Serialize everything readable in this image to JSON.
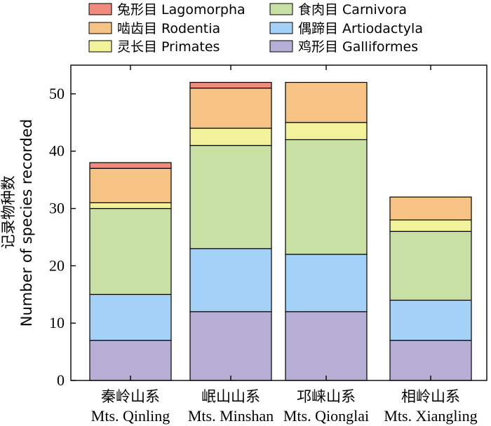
{
  "chart_data": {
    "type": "bar",
    "stacked": true,
    "categories_cn": [
      "秦岭山系",
      "岷山山系",
      "邛崃山系",
      "相岭山系"
    ],
    "categories_en": [
      "Mts. Qinling",
      "Mts. Minshan",
      "Mts. Qionglai",
      "Mts. Xiangling"
    ],
    "ylabel_cn": "记录物种数",
    "ylabel_en": "Number of species recorded",
    "ylim": [
      0,
      55
    ],
    "yticks": [
      0,
      10,
      20,
      30,
      40,
      50
    ],
    "grid": false,
    "legend_position": "top",
    "series": [
      {
        "name": "鸡形目 Galliformes",
        "color": "#b7aed6",
        "values": [
          7,
          12,
          12,
          7
        ]
      },
      {
        "name": "偶蹄目 Artiodactyla",
        "color": "#a3d1f7",
        "values": [
          8,
          11,
          10,
          7
        ]
      },
      {
        "name": "食肉目 Carnivora",
        "color": "#c9e0a4",
        "values": [
          15,
          18,
          20,
          12
        ]
      },
      {
        "name": "灵长目 Primates",
        "color": "#f1f29a",
        "values": [
          1,
          3,
          3,
          2
        ]
      },
      {
        "name": "啮齿目 Rodentia",
        "color": "#f6c385",
        "values": [
          6,
          7,
          7,
          4
        ]
      },
      {
        "name": "兔形目 Lagomorpha",
        "color": "#f08a7c",
        "values": [
          1,
          1,
          0,
          0
        ]
      }
    ]
  }
}
